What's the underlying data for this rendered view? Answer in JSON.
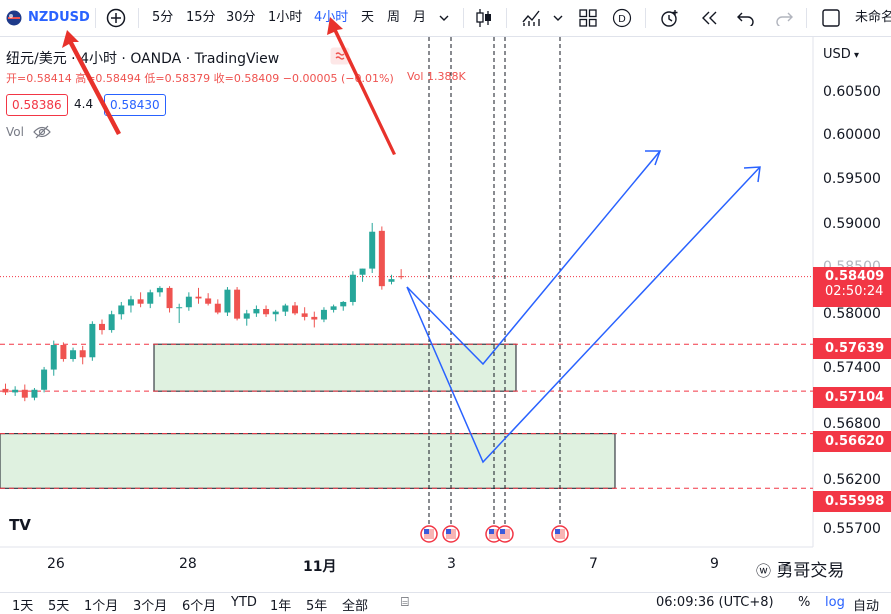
{
  "toolbar": {
    "symbol": "NZDUSD",
    "intervals": [
      "5分",
      "15分",
      "30分",
      "1小时",
      "4小时",
      "天",
      "周",
      "月"
    ],
    "active_interval": "4小时",
    "unnamed_label": "未命名"
  },
  "legend": {
    "title": "纽元/美元 · 4小时 · OANDA · TradingView",
    "ohlc": "开=0.58414 高=0.58494 低=0.58379 收=0.58409 −0.00005 (−0.01%)",
    "vol": "Vol 1.388K",
    "sell_price": "0.58386",
    "spread": "4.4",
    "buy_price": "0.58430",
    "vol_label": "Vol"
  },
  "price_axis": {
    "currency": "USD",
    "ticks": [
      "0.60500",
      "0.60000",
      "0.59500",
      "0.59000",
      "0.58000",
      "0.57400",
      "0.56800",
      "0.56200",
      "0.55700"
    ],
    "current_price": "0.58409",
    "countdown": "02:50:24",
    "levels": [
      "0.57639",
      "0.57104",
      "0.56620",
      "0.55998"
    ],
    "partial_tick": "0.58500"
  },
  "date_axis": [
    "26",
    "28",
    "11月",
    "3",
    "7",
    "9"
  ],
  "bottom_bar": {
    "ranges": [
      "1天",
      "5天",
      "1个月",
      "3个月",
      "6个月",
      "YTD",
      "1年",
      "5年",
      "全部"
    ],
    "clock": "06:09:36 (UTC+8)",
    "pct": "%",
    "log": "log",
    "auto": "自动"
  },
  "watermark": "勇哥交易",
  "logo_text": "TV",
  "colors": {
    "up": "#26a69a",
    "down": "#ef5350",
    "accent": "#2962ff",
    "red": "#f23645"
  },
  "chart_data": {
    "type": "candlestick",
    "candles": [
      {
        "o": 0.5713,
        "h": 0.5719,
        "l": 0.5706,
        "c": 0.5709
      },
      {
        "o": 0.5709,
        "h": 0.5716,
        "l": 0.5705,
        "c": 0.5712
      },
      {
        "o": 0.5712,
        "h": 0.5718,
        "l": 0.5699,
        "c": 0.5703
      },
      {
        "o": 0.5703,
        "h": 0.5714,
        "l": 0.57,
        "c": 0.5712
      },
      {
        "o": 0.5712,
        "h": 0.5738,
        "l": 0.5709,
        "c": 0.5735
      },
      {
        "o": 0.5735,
        "h": 0.5768,
        "l": 0.5728,
        "c": 0.5763
      },
      {
        "o": 0.5763,
        "h": 0.5766,
        "l": 0.5744,
        "c": 0.5747
      },
      {
        "o": 0.5747,
        "h": 0.576,
        "l": 0.5744,
        "c": 0.5757
      },
      {
        "o": 0.5757,
        "h": 0.5762,
        "l": 0.5741,
        "c": 0.5749
      },
      {
        "o": 0.5749,
        "h": 0.579,
        "l": 0.5745,
        "c": 0.5787
      },
      {
        "o": 0.5787,
        "h": 0.5792,
        "l": 0.5775,
        "c": 0.578
      },
      {
        "o": 0.578,
        "h": 0.5802,
        "l": 0.5777,
        "c": 0.5798
      },
      {
        "o": 0.5798,
        "h": 0.5812,
        "l": 0.5792,
        "c": 0.5808
      },
      {
        "o": 0.5808,
        "h": 0.5819,
        "l": 0.58,
        "c": 0.5815
      },
      {
        "o": 0.5815,
        "h": 0.5823,
        "l": 0.5806,
        "c": 0.581
      },
      {
        "o": 0.581,
        "h": 0.5826,
        "l": 0.5805,
        "c": 0.5823
      },
      {
        "o": 0.5823,
        "h": 0.583,
        "l": 0.5818,
        "c": 0.5828
      },
      {
        "o": 0.5828,
        "h": 0.583,
        "l": 0.58,
        "c": 0.5805
      },
      {
        "o": 0.5805,
        "h": 0.581,
        "l": 0.5788,
        "c": 0.5806
      },
      {
        "o": 0.5806,
        "h": 0.5823,
        "l": 0.5802,
        "c": 0.5818
      },
      {
        "o": 0.5818,
        "h": 0.5828,
        "l": 0.581,
        "c": 0.5816
      },
      {
        "o": 0.5816,
        "h": 0.5822,
        "l": 0.5808,
        "c": 0.581
      },
      {
        "o": 0.581,
        "h": 0.5815,
        "l": 0.5798,
        "c": 0.58
      },
      {
        "o": 0.58,
        "h": 0.5829,
        "l": 0.5796,
        "c": 0.5826
      },
      {
        "o": 0.5826,
        "h": 0.5829,
        "l": 0.5791,
        "c": 0.5793
      },
      {
        "o": 0.5793,
        "h": 0.5803,
        "l": 0.5785,
        "c": 0.5799
      },
      {
        "o": 0.5799,
        "h": 0.5808,
        "l": 0.5795,
        "c": 0.5804
      },
      {
        "o": 0.5804,
        "h": 0.5808,
        "l": 0.5795,
        "c": 0.5798
      },
      {
        "o": 0.5798,
        "h": 0.5803,
        "l": 0.579,
        "c": 0.5801
      },
      {
        "o": 0.5801,
        "h": 0.581,
        "l": 0.5796,
        "c": 0.5808
      },
      {
        "o": 0.5808,
        "h": 0.5812,
        "l": 0.5797,
        "c": 0.5799
      },
      {
        "o": 0.5799,
        "h": 0.5806,
        "l": 0.5791,
        "c": 0.5795
      },
      {
        "o": 0.5795,
        "h": 0.5801,
        "l": 0.5783,
        "c": 0.5792
      },
      {
        "o": 0.5792,
        "h": 0.5806,
        "l": 0.5789,
        "c": 0.5803
      },
      {
        "o": 0.5803,
        "h": 0.5809,
        "l": 0.58,
        "c": 0.5807
      },
      {
        "o": 0.5807,
        "h": 0.5813,
        "l": 0.5802,
        "c": 0.5812
      },
      {
        "o": 0.5812,
        "h": 0.5847,
        "l": 0.5808,
        "c": 0.5843
      },
      {
        "o": 0.5843,
        "h": 0.585,
        "l": 0.5835,
        "c": 0.585
      },
      {
        "o": 0.585,
        "h": 0.5902,
        "l": 0.5845,
        "c": 0.5892
      },
      {
        "o": 0.5893,
        "h": 0.5898,
        "l": 0.5826,
        "c": 0.583
      },
      {
        "o": 0.5835,
        "h": 0.5843,
        "l": 0.5832,
        "c": 0.5838
      },
      {
        "o": 0.58414,
        "h": 0.58494,
        "l": 0.58379,
        "c": 0.58409
      }
    ]
  }
}
